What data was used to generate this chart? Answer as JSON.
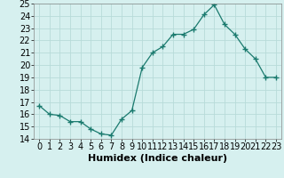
{
  "x": [
    0,
    1,
    2,
    3,
    4,
    5,
    6,
    7,
    8,
    9,
    10,
    11,
    12,
    13,
    14,
    15,
    16,
    17,
    18,
    19,
    20,
    21,
    22,
    23
  ],
  "y": [
    16.7,
    16.0,
    15.9,
    15.4,
    15.4,
    14.8,
    14.4,
    14.3,
    15.6,
    16.3,
    19.8,
    21.0,
    21.5,
    22.5,
    22.5,
    22.9,
    24.1,
    24.9,
    23.3,
    22.5,
    21.3,
    20.5,
    19.0,
    19.0
  ],
  "line_color": "#1a7a6e",
  "marker": "+",
  "marker_size": 4,
  "bg_color": "#d6f0ef",
  "grid_color": "#b8dbd9",
  "xlabel": "Humidex (Indice chaleur)",
  "ylim": [
    14,
    25
  ],
  "yticks": [
    14,
    15,
    16,
    17,
    18,
    19,
    20,
    21,
    22,
    23,
    24,
    25
  ],
  "xticks": [
    0,
    1,
    2,
    3,
    4,
    5,
    6,
    7,
    8,
    9,
    10,
    11,
    12,
    13,
    14,
    15,
    16,
    17,
    18,
    19,
    20,
    21,
    22,
    23
  ],
  "xlim": [
    -0.5,
    23.5
  ],
  "font_size": 7,
  "xlabel_fontsize": 8
}
